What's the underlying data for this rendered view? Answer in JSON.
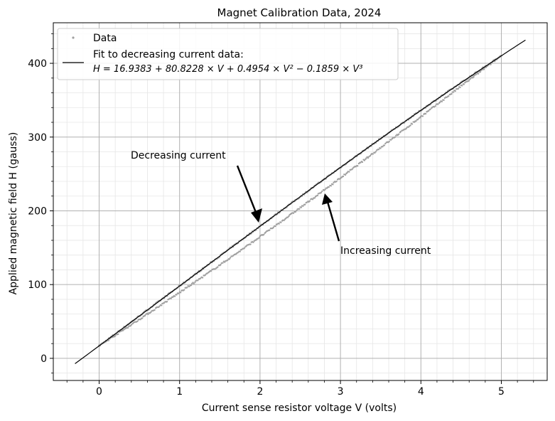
{
  "chart_data": {
    "type": "scatter",
    "title": "Magnet Calibration Data, 2024",
    "xlabel": "Current sense resistor voltage V (volts)",
    "ylabel": "Applied magnetic field H (gauss)",
    "xlim": [
      -0.57,
      5.57
    ],
    "ylim": [
      -30,
      455
    ],
    "x_ticks": [
      0,
      1,
      2,
      3,
      4,
      5
    ],
    "y_ticks": [
      0,
      100,
      200,
      300,
      400
    ],
    "grid": true,
    "minor_grid": true,
    "legend_position": "top-left",
    "legend": {
      "data_label": "Data",
      "fit_label_line1": "Fit to decreasing current data:",
      "fit_label_line2": "H = 16.9383 + 80.8228 × V + 0.4954 × V² − 0.1859 × V³"
    },
    "series": [
      {
        "name": "Data",
        "kind": "scatter",
        "color": "#a0a0a0",
        "branches": [
          {
            "label": "decreasing current",
            "x_range": [
              0,
              5.0
            ],
            "model": "fit"
          },
          {
            "label": "increasing current",
            "x_range": [
              0,
              5.0
            ],
            "model": "fit_minus_hysteresis",
            "max_offset_gauss": 15
          }
        ]
      },
      {
        "name": "Fit to decreasing current data",
        "kind": "line",
        "color": "#000000",
        "coefficients": [
          16.9383,
          80.8228,
          0.4954,
          -0.1859
        ],
        "x_range": [
          -0.3,
          5.3
        ]
      }
    ],
    "annotations": [
      {
        "text": "Decreasing current",
        "arrow_to": [
          1.98,
          182
        ]
      },
      {
        "text": "Increasing current",
        "arrow_to": [
          2.8,
          226
        ]
      }
    ]
  }
}
